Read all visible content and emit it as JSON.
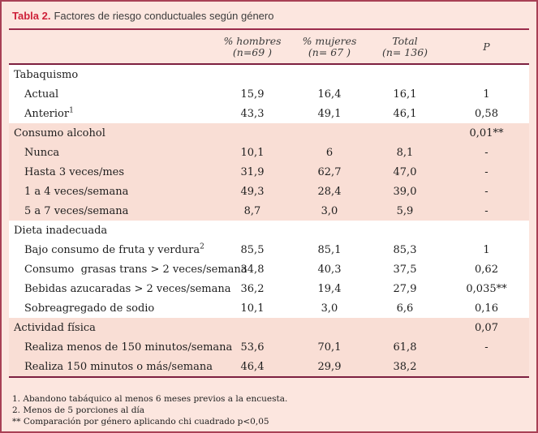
{
  "title": {
    "label": "Tabla 2.",
    "text": "Factores de riesgo conductuales según género"
  },
  "columns": [
    {
      "line1": "% hombres",
      "line2": "(n=69 )"
    },
    {
      "line1": "% mujeres",
      "line2": "(n= 67 )"
    },
    {
      "line1": "Total",
      "line2": "(n= 136)"
    },
    {
      "line1": "P",
      "line2": ""
    }
  ],
  "sections": [
    {
      "name": "Tabaquismo",
      "p": "",
      "tint": "white",
      "rows": [
        {
          "label": "Actual",
          "sup": "",
          "hombres": "15,9",
          "mujeres": "16,4",
          "total": "16,1",
          "p": "1"
        },
        {
          "label": "Anterior",
          "sup": "1",
          "hombres": "43,3",
          "mujeres": "49,1",
          "total": "46,1",
          "p": "0,58"
        }
      ]
    },
    {
      "name": "Consumo alcohol",
      "p": "0,01**",
      "tint": "pink",
      "rows": [
        {
          "label": "Nunca",
          "sup": "",
          "hombres": "10,1",
          "mujeres": "6",
          "total": "8,1",
          "p": "-"
        },
        {
          "label": "Hasta 3 veces/mes",
          "sup": "",
          "hombres": "31,9",
          "mujeres": "62,7",
          "total": "47,0",
          "p": "-"
        },
        {
          "label": "1 a 4 veces/semana",
          "sup": "",
          "hombres": "49,3",
          "mujeres": "28,4",
          "total": "39,0",
          "p": "-"
        },
        {
          "label": "5 a 7 veces/semana",
          "sup": "",
          "hombres": "8,7",
          "mujeres": "3,0",
          "total": "5,9",
          "p": "-"
        }
      ]
    },
    {
      "name": "Dieta inadecuada",
      "p": "",
      "tint": "white",
      "rows": [
        {
          "label": "Bajo consumo de fruta y verdura",
          "sup": "2",
          "hombres": "85,5",
          "mujeres": "85,1",
          "total": "85,3",
          "p": "1"
        },
        {
          "label": "Consumo  grasas trans > 2 veces/semana",
          "sup": "",
          "hombres": "34,8",
          "mujeres": "40,3",
          "total": "37,5",
          "p": "0,62"
        },
        {
          "label": "Bebidas azucaradas > 2 veces/semana",
          "sup": "",
          "hombres": "36,2",
          "mujeres": "19,4",
          "total": "27,9",
          "p": "0,035**"
        },
        {
          "label": "Sobreagregado de sodio",
          "sup": "",
          "hombres": "10,1",
          "mujeres": "3,0",
          "total": "6,6",
          "p": "0,16"
        }
      ]
    },
    {
      "name": "Actividad física",
      "p": "0,07",
      "tint": "pink",
      "rows": [
        {
          "label": "Realiza menos de 150 minutos/semana",
          "sup": "",
          "hombres": "53,6",
          "mujeres": "70,1",
          "total": "61,8",
          "p": "-"
        },
        {
          "label": "Realiza 150 minutos o más/semana",
          "sup": "",
          "hombres": "46,4",
          "mujeres": "29,9",
          "total": "38,2",
          "p": ""
        }
      ]
    }
  ],
  "footnotes": [
    "1. Abandono tabáquico al menos 6 meses previos a la encuesta.",
    "2. Menos de 5 porciones al día",
    "** Comparación por género aplicando chi cuadrado p<0,05"
  ],
  "colors": {
    "page_background": "#fce6df",
    "stripe_pink": "#f9ded5",
    "outer_border": "#a84055",
    "title_accent_red": "#ce2139",
    "rule_top": "#9b2c4b",
    "rule_dark": "#7d2040",
    "text": "#1e1e1e"
  }
}
